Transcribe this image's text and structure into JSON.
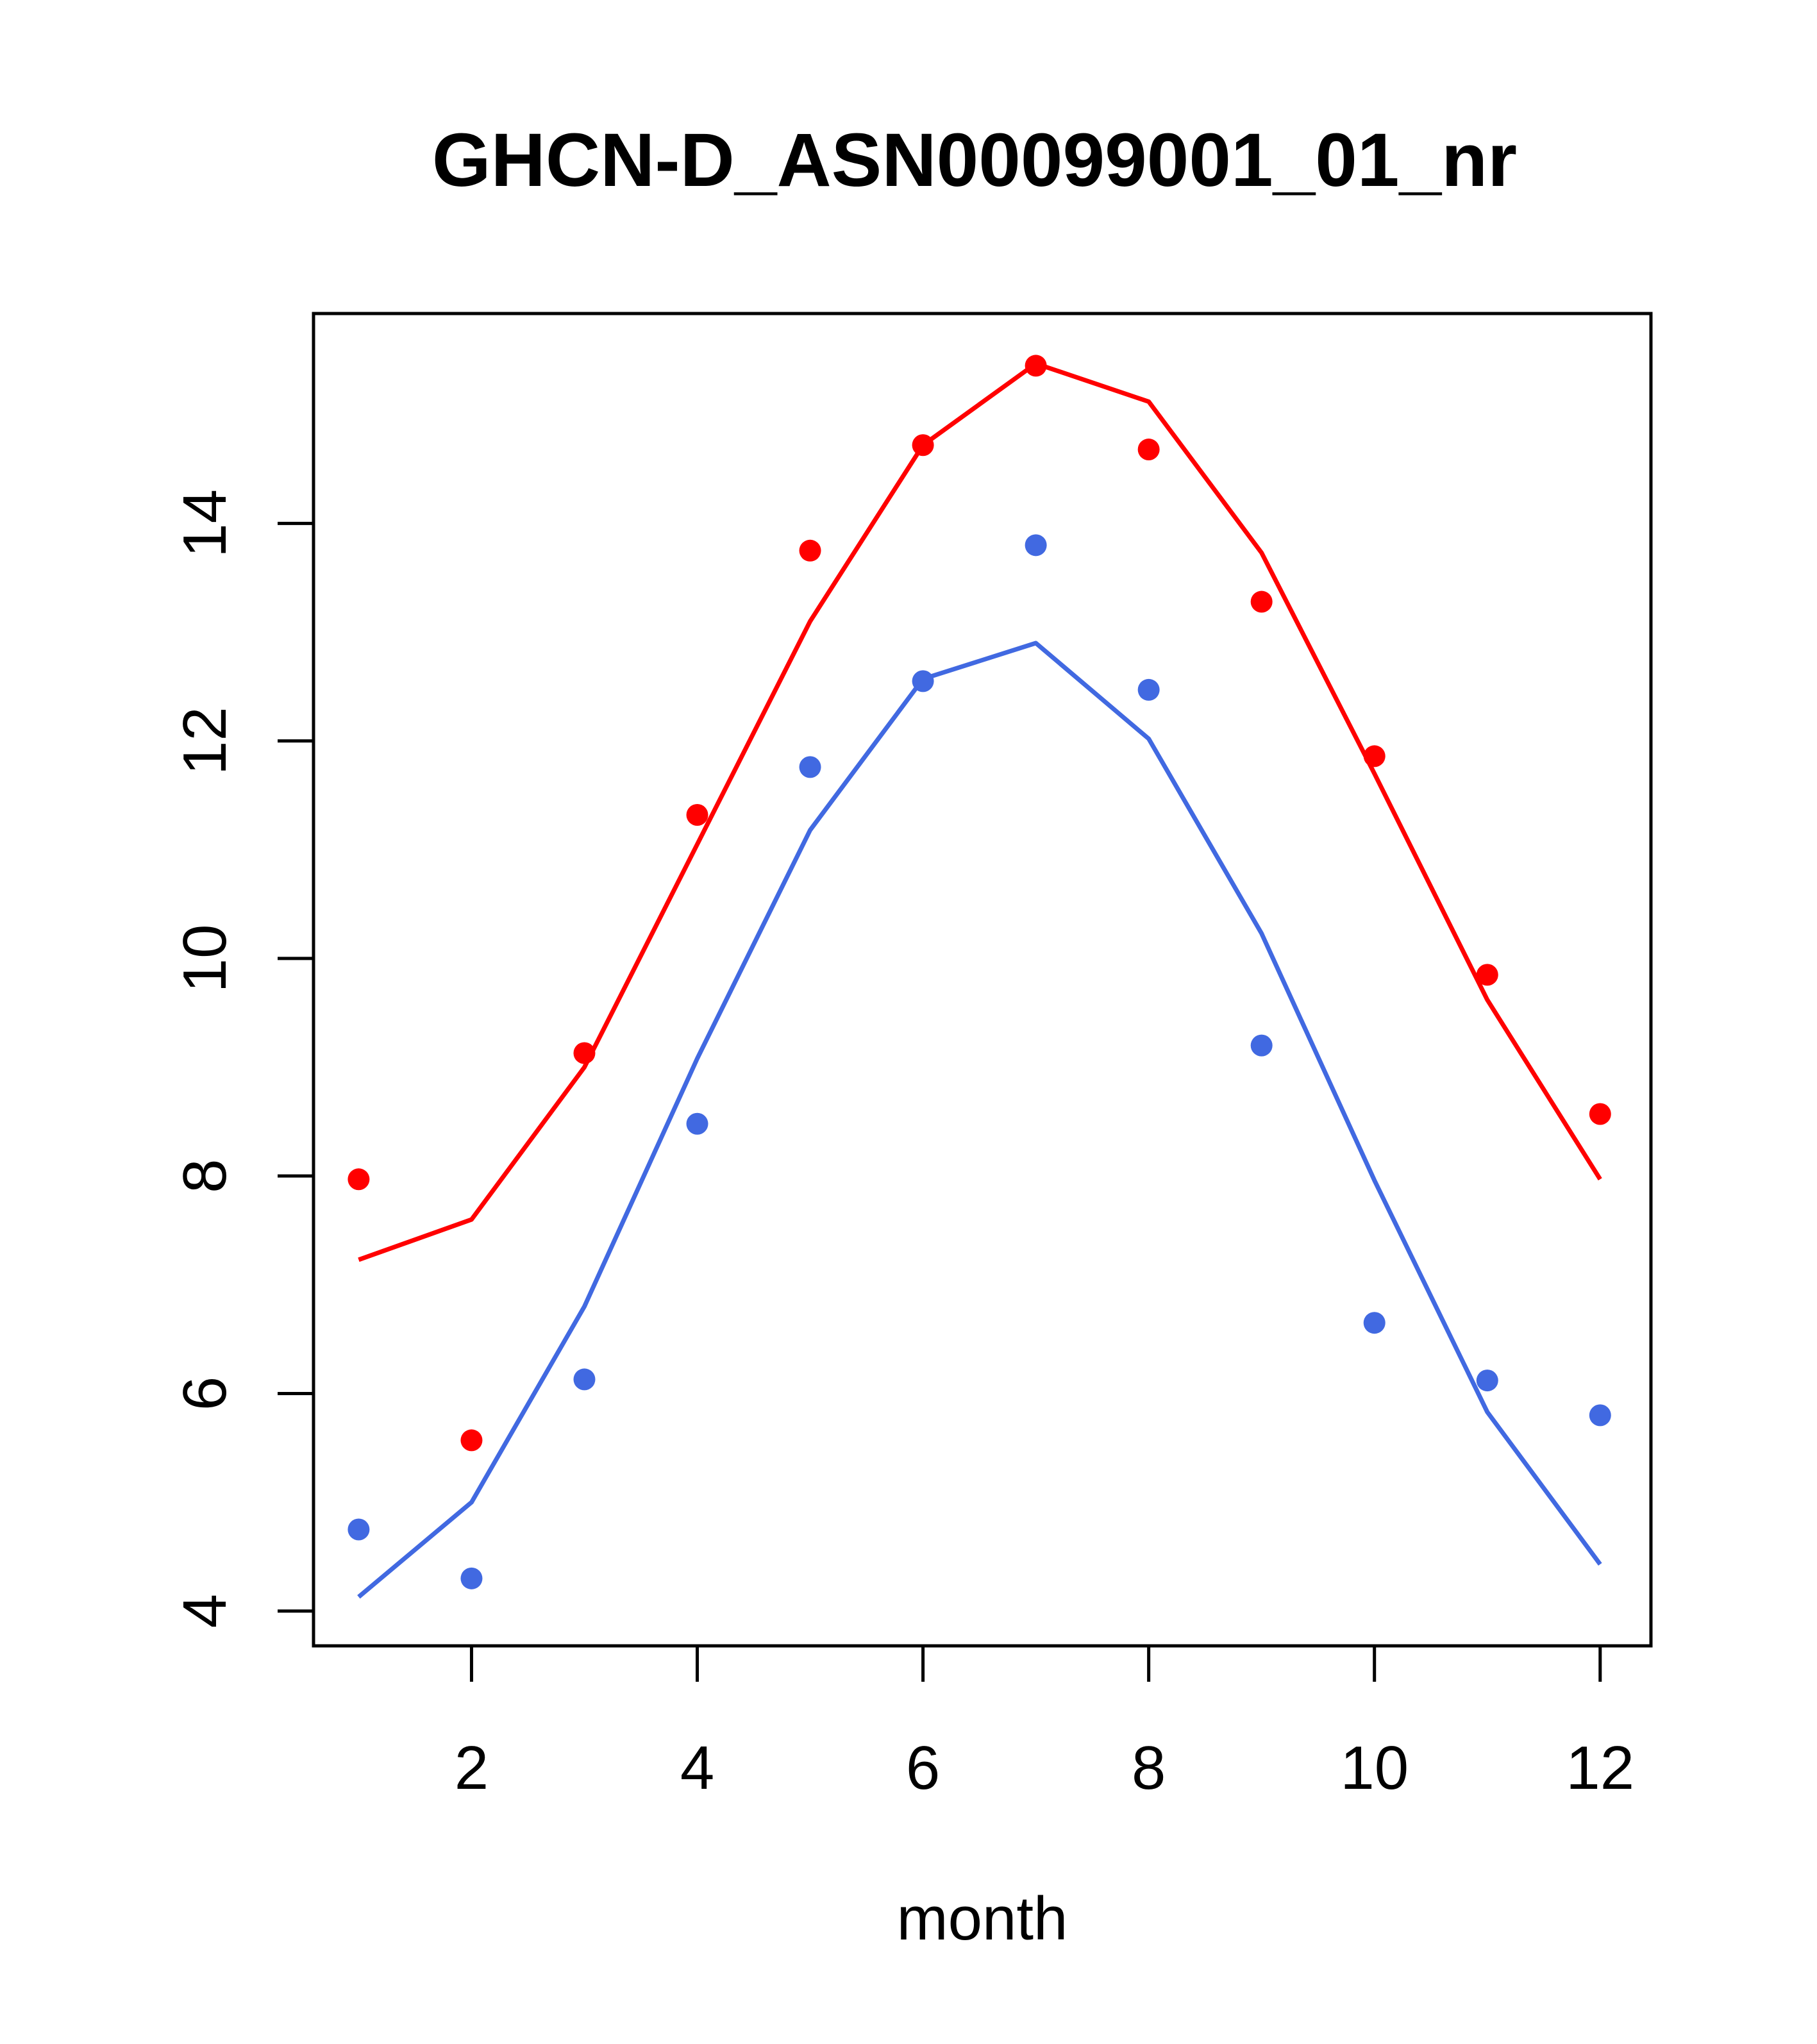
{
  "chart_data": {
    "type": "line",
    "title": "GHCN-D_ASN00099001_01_nr",
    "xlabel": "month",
    "ylabel": "",
    "xlim": [
      0.6,
      12.45
    ],
    "ylim": [
      3.68,
      15.93
    ],
    "xticks": [
      2,
      4,
      6,
      8,
      10,
      12
    ],
    "yticks": [
      4,
      6,
      8,
      10,
      12,
      14
    ],
    "grid": false,
    "colors": {
      "red": "#ff0000",
      "blue": "#4169e1"
    },
    "series": [
      {
        "color": "#ff0000",
        "x": [
          1,
          2,
          3,
          4,
          5,
          6,
          7,
          8,
          9,
          10,
          11,
          12
        ],
        "points": [
          7.97,
          5.57,
          9.13,
          11.32,
          13.75,
          14.72,
          15.45,
          14.68,
          13.28,
          11.86,
          9.85,
          8.57
        ],
        "line": [
          7.23,
          7.6,
          9.0,
          11.05,
          13.1,
          14.72,
          15.47,
          15.12,
          13.73,
          11.7,
          9.62,
          7.97
        ]
      },
      {
        "color": "#4169e1",
        "x": [
          1,
          2,
          3,
          4,
          5,
          6,
          7,
          8,
          9,
          10,
          11,
          12
        ],
        "points": [
          4.75,
          4.3,
          6.13,
          8.48,
          11.76,
          12.55,
          13.8,
          12.47,
          9.2,
          6.65,
          6.12,
          5.8
        ],
        "line": [
          4.13,
          5.0,
          6.8,
          9.08,
          11.18,
          12.57,
          12.9,
          12.02,
          10.23,
          7.96,
          5.83,
          4.43
        ]
      }
    ]
  }
}
